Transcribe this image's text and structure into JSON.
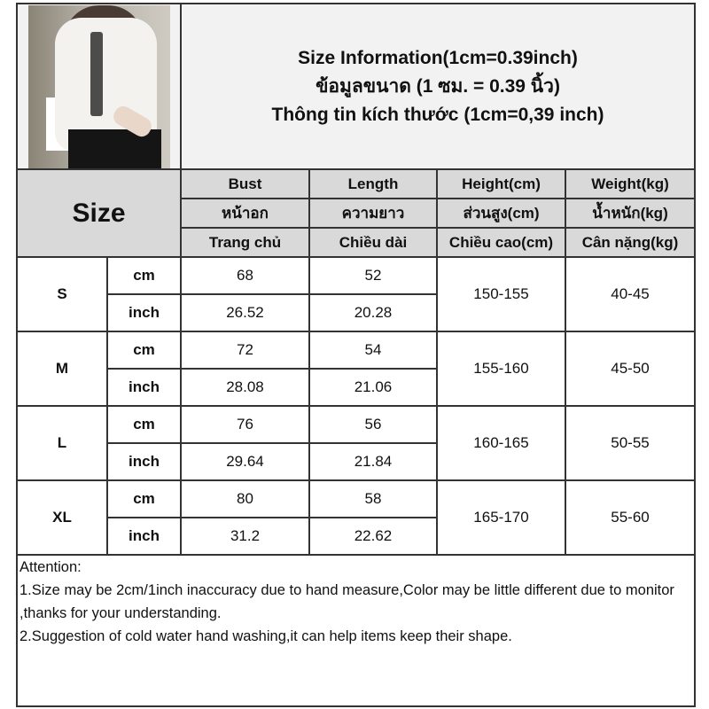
{
  "header": {
    "title_en": "Size Information(1cm=0.39inch)",
    "title_th": "ข้อมูลขนาด (1 ซม. = 0.39 นิ้ว)",
    "title_vi": "Thông tin kích thước (1cm=0,39 inch)"
  },
  "table": {
    "size_label": "Size",
    "columns": [
      {
        "en": "Bust",
        "th": "หน้าอก",
        "vi": "Trang chủ"
      },
      {
        "en": "Length",
        "th": "ความยาว",
        "vi": "Chiều dài"
      },
      {
        "en": "Height(cm)",
        "th": "ส่วนสูง(cm)",
        "vi": "Chiều cao(cm)"
      },
      {
        "en": "Weight(kg)",
        "th": "น้ำหนัก(kg)",
        "vi": "Cân nặng(kg)"
      }
    ],
    "rows": [
      {
        "size": "S",
        "cm_label": "cm",
        "inch_label": "inch",
        "bust_cm": "68",
        "length_cm": "52",
        "bust_in": "26.52",
        "length_in": "20.28",
        "height": "150-155",
        "weight": "40-45"
      },
      {
        "size": "M",
        "cm_label": "cm",
        "inch_label": "inch",
        "bust_cm": "72",
        "length_cm": "54",
        "bust_in": "28.08",
        "length_in": "21.06",
        "height": "155-160",
        "weight": "45-50"
      },
      {
        "size": "L",
        "cm_label": "cm",
        "inch_label": "inch",
        "bust_cm": "76",
        "length_cm": "56",
        "bust_in": "29.64",
        "length_in": "21.84",
        "height": "160-165",
        "weight": "50-55"
      },
      {
        "size": "XL",
        "cm_label": "cm",
        "inch_label": "inch",
        "bust_cm": "80",
        "length_cm": "58",
        "bust_in": "31.2",
        "length_in": "22.62",
        "height": "165-170",
        "weight": "55-60"
      }
    ]
  },
  "attention": {
    "title": "Attention:",
    "line1": "1.Size may be 2cm/1inch inaccuracy due to hand measure,Color may be little different due to monitor ,thanks for your understanding.",
    "line2": "2.Suggestion of cold water hand washing,it can help items keep their shape."
  }
}
